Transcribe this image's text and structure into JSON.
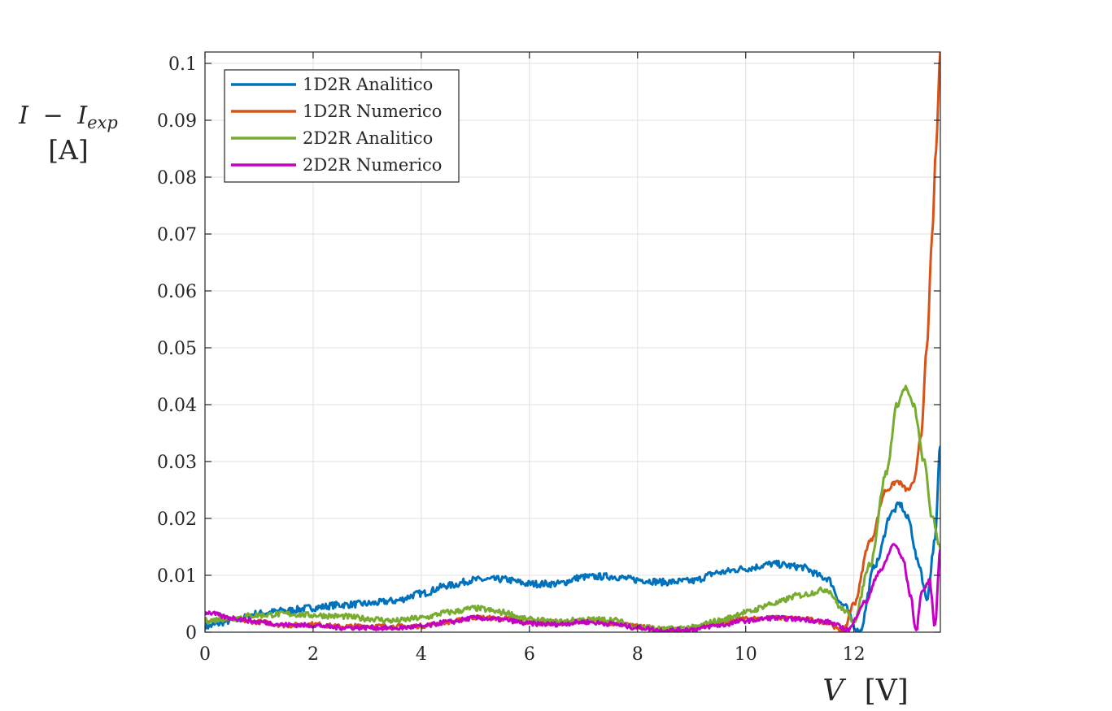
{
  "chart_data": {
    "type": "line",
    "xlabel": {
      "var": "V",
      "unit": "[V]"
    },
    "ylabel": {
      "var": "I",
      "minus": "−",
      "sub_var": "I",
      "sub": "exp",
      "unit": "[A]"
    },
    "xlim": [
      0,
      13.6
    ],
    "ylim": [
      0,
      0.102
    ],
    "xticks": [
      0,
      2,
      4,
      6,
      8,
      10,
      12
    ],
    "xtick_labels": [
      "0",
      "2",
      "4",
      "6",
      "8",
      "10",
      "12"
    ],
    "yticks": [
      0,
      0.01,
      0.02,
      0.03,
      0.04,
      0.05,
      0.06,
      0.07,
      0.08,
      0.09,
      0.1
    ],
    "ytick_labels": [
      "0",
      "0.01",
      "0.02",
      "0.03",
      "0.04",
      "0.05",
      "0.06",
      "0.07",
      "0.08",
      "0.09",
      "0.1"
    ],
    "grid": true,
    "legend_position": "top-left",
    "series": [
      {
        "name": "1D2R Analitico",
        "color": "#0072BD",
        "noise": 0.0006,
        "x": [
          0,
          0.5,
          1,
          1.5,
          2,
          2.5,
          3,
          3.5,
          4,
          4.5,
          5,
          5.5,
          6,
          6.5,
          7,
          7.5,
          8,
          8.5,
          9,
          9.5,
          10,
          10.5,
          11,
          11.5,
          11.8,
          12.1,
          12.4,
          12.7,
          12.85,
          13.0,
          13.2,
          13.35,
          13.5,
          13.6
        ],
        "y": [
          0.001,
          0.002,
          0.0033,
          0.0038,
          0.0043,
          0.0048,
          0.005,
          0.0055,
          0.0068,
          0.0082,
          0.0092,
          0.0093,
          0.0085,
          0.0085,
          0.0097,
          0.0098,
          0.0092,
          0.0088,
          0.009,
          0.0105,
          0.0112,
          0.012,
          0.0115,
          0.0095,
          0.0048,
          0.0,
          0.012,
          0.021,
          0.0225,
          0.02,
          0.012,
          0.006,
          0.016,
          0.033
        ]
      },
      {
        "name": "1D2R Numerico",
        "color": "#D95319",
        "noise": 0.0004,
        "x": [
          0,
          0.5,
          1,
          1.5,
          2,
          2.5,
          3,
          3.5,
          4,
          4.5,
          5,
          5.5,
          6,
          6.5,
          7,
          7.5,
          8,
          8.5,
          9,
          9.5,
          10,
          10.5,
          11,
          11.5,
          11.8,
          12.0,
          12.3,
          12.6,
          12.8,
          13.0,
          13.1,
          13.25,
          13.35,
          13.45,
          13.52,
          13.6
        ],
        "y": [
          0.0022,
          0.0022,
          0.0018,
          0.0012,
          0.0014,
          0.001,
          0.0011,
          0.001,
          0.0011,
          0.0018,
          0.0026,
          0.0024,
          0.0017,
          0.0015,
          0.002,
          0.0016,
          0.001,
          0.0005,
          0.0006,
          0.0015,
          0.0024,
          0.0025,
          0.0024,
          0.0018,
          0.0,
          0.005,
          0.016,
          0.025,
          0.0265,
          0.025,
          0.026,
          0.035,
          0.05,
          0.07,
          0.085,
          0.102
        ]
      },
      {
        "name": "2D2R Analitico",
        "color": "#77AC30",
        "noise": 0.0005,
        "x": [
          0,
          0.5,
          1,
          1.5,
          2,
          2.5,
          3,
          3.5,
          4,
          4.5,
          5,
          5.5,
          6,
          6.5,
          7,
          7.5,
          8,
          8.5,
          9,
          9.5,
          10,
          10.5,
          11,
          11.5,
          11.8,
          12.0,
          12.3,
          12.6,
          12.8,
          12.95,
          13.1,
          13.3,
          13.45,
          13.6
        ],
        "y": [
          0.002,
          0.0025,
          0.003,
          0.0032,
          0.003,
          0.0028,
          0.0024,
          0.002,
          0.0025,
          0.0035,
          0.0042,
          0.0035,
          0.0022,
          0.0018,
          0.0022,
          0.0022,
          0.001,
          0.0005,
          0.0008,
          0.002,
          0.0035,
          0.005,
          0.0065,
          0.0075,
          0.004,
          0.002,
          0.012,
          0.028,
          0.04,
          0.043,
          0.04,
          0.03,
          0.02,
          0.015
        ]
      },
      {
        "name": "2D2R Numerico",
        "color": "#C300C3",
        "noise": 0.0004,
        "x": [
          0,
          0.5,
          1,
          1.5,
          2,
          2.5,
          3,
          3.5,
          4,
          4.5,
          5,
          5.5,
          6,
          6.5,
          7,
          7.5,
          8,
          8.5,
          9,
          9.5,
          10,
          10.5,
          11,
          11.5,
          11.9,
          12.2,
          12.5,
          12.75,
          12.9,
          13.05,
          13.15,
          13.25,
          13.4,
          13.5,
          13.6
        ],
        "y": [
          0.0035,
          0.0025,
          0.0018,
          0.0013,
          0.0012,
          0.0008,
          0.0008,
          0.0007,
          0.001,
          0.0018,
          0.0025,
          0.0022,
          0.0015,
          0.0014,
          0.0018,
          0.0015,
          0.0008,
          0.0003,
          0.0005,
          0.0012,
          0.002,
          0.0025,
          0.0023,
          0.0018,
          0.0005,
          0.0052,
          0.011,
          0.0155,
          0.013,
          0.0065,
          0.0,
          0.007,
          0.009,
          0.001,
          0.015
        ]
      }
    ]
  }
}
